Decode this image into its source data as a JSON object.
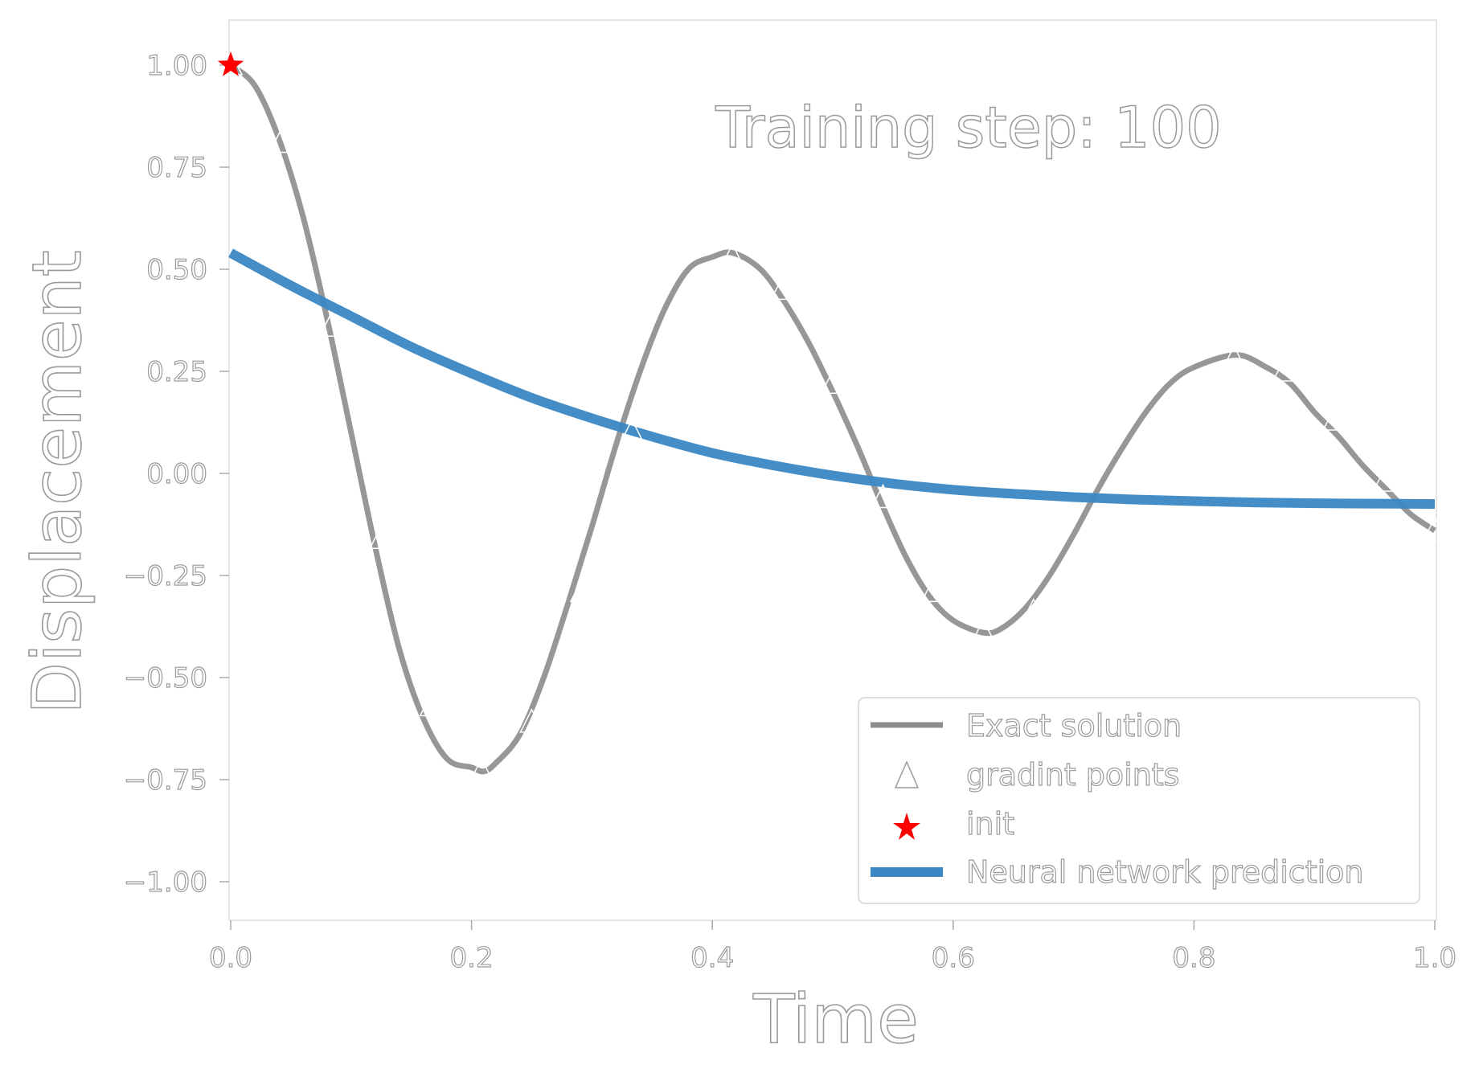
{
  "chart_data": {
    "type": "line",
    "title": "",
    "xlabel": "Time",
    "ylabel": "Displacement",
    "annotation": "Training step: 100",
    "xlim": [
      0.0,
      1.0
    ],
    "ylim": [
      -1.1,
      1.1
    ],
    "xticks": [
      0.0,
      0.2,
      0.4,
      0.6,
      0.8,
      1.0
    ],
    "xtick_labels": [
      "0.0",
      "0.2",
      "0.4",
      "0.6",
      "0.8",
      "1.0"
    ],
    "yticks": [
      1.0,
      0.75,
      0.5,
      0.25,
      0.0,
      -0.25,
      -0.5,
      -0.75,
      -1.0
    ],
    "ytick_labels": [
      "1.00",
      "0.75",
      "0.50",
      "0.25",
      "0.00",
      "−0.25",
      "−0.50",
      "−0.75",
      "−1.00"
    ],
    "grid": false,
    "legend_position": "lower-right",
    "series": [
      {
        "name": "Exact solution",
        "kind": "line",
        "color": "#8c8c8c",
        "x": [
          0.0,
          0.02,
          0.04,
          0.06,
          0.08,
          0.1,
          0.12,
          0.14,
          0.16,
          0.18,
          0.2,
          0.21,
          0.22,
          0.24,
          0.26,
          0.28,
          0.3,
          0.32,
          0.34,
          0.36,
          0.38,
          0.4,
          0.417,
          0.44,
          0.46,
          0.48,
          0.5,
          0.52,
          0.54,
          0.56,
          0.58,
          0.6,
          0.625,
          0.64,
          0.66,
          0.68,
          0.7,
          0.72,
          0.74,
          0.76,
          0.78,
          0.8,
          0.835,
          0.86,
          0.88,
          0.9,
          0.92,
          0.94,
          0.96,
          0.98,
          1.0
        ],
        "y": [
          1.0,
          0.95,
          0.82,
          0.63,
          0.38,
          0.1,
          -0.18,
          -0.43,
          -0.6,
          -0.7,
          -0.72,
          -0.73,
          -0.71,
          -0.64,
          -0.5,
          -0.32,
          -0.13,
          0.07,
          0.25,
          0.4,
          0.5,
          0.53,
          0.54,
          0.5,
          0.42,
          0.32,
          0.2,
          0.07,
          -0.07,
          -0.2,
          -0.3,
          -0.36,
          -0.39,
          -0.38,
          -0.33,
          -0.25,
          -0.15,
          -0.04,
          0.06,
          0.15,
          0.22,
          0.26,
          0.29,
          0.26,
          0.22,
          0.15,
          0.09,
          0.02,
          -0.04,
          -0.1,
          -0.14
        ]
      },
      {
        "name": "gradint points",
        "kind": "scatter",
        "marker": "triangle",
        "x": [
          0.0,
          0.0417,
          0.0833,
          0.125,
          0.1667,
          0.2083,
          0.25,
          0.2917,
          0.3333,
          0.375,
          0.4167,
          0.4583,
          0.5,
          0.5417,
          0.5833,
          0.625,
          0.6667,
          0.7083,
          0.75,
          0.7917,
          0.8333,
          0.875,
          0.9167,
          0.9583,
          1.0
        ],
        "y": [
          1.0,
          0.81,
          0.36,
          -0.16,
          -0.57,
          -0.73,
          -0.61,
          -0.29,
          0.1,
          0.4,
          0.53,
          0.45,
          0.22,
          -0.06,
          -0.29,
          -0.39,
          -0.34,
          -0.17,
          0.03,
          0.2,
          0.28,
          0.25,
          0.13,
          -0.02,
          -0.14
        ]
      },
      {
        "name": "init",
        "kind": "scatter",
        "marker": "star",
        "color": "#ff0000",
        "x": [
          0.0
        ],
        "y": [
          1.0
        ]
      },
      {
        "name": "Neural network prediction",
        "kind": "line",
        "color": "#3a87c4",
        "x": [
          0.0,
          0.05,
          0.1,
          0.15,
          0.2,
          0.25,
          0.3,
          0.35,
          0.4,
          0.45,
          0.5,
          0.55,
          0.6,
          0.65,
          0.7,
          0.75,
          0.8,
          0.85,
          0.9,
          0.95,
          1.0
        ],
        "y": [
          0.54,
          0.46,
          0.385,
          0.31,
          0.245,
          0.185,
          0.135,
          0.09,
          0.05,
          0.02,
          -0.005,
          -0.025,
          -0.04,
          -0.05,
          -0.058,
          -0.064,
          -0.068,
          -0.071,
          -0.073,
          -0.074,
          -0.075
        ]
      }
    ]
  }
}
